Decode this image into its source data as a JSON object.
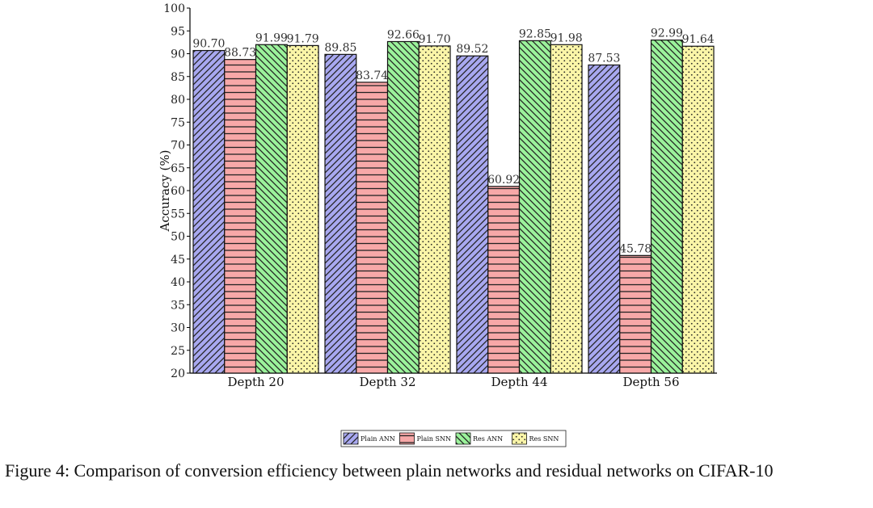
{
  "caption": "Figure 4: Comparison of conversion efficiency between plain networks and residual networks on CIFAR-10",
  "chart_data": {
    "type": "bar",
    "categories": [
      "Depth 20",
      "Depth 32",
      "Depth 44",
      "Depth 56"
    ],
    "series": [
      {
        "name": "Plain ANN",
        "values": [
          90.7,
          89.85,
          89.52,
          87.53
        ],
        "labels": [
          "90.70",
          "89.85",
          "89.52",
          "87.53"
        ],
        "color": "#a8a8f0",
        "hatch": "diag-up"
      },
      {
        "name": "Plain SNN",
        "values": [
          88.73,
          83.74,
          60.92,
          45.78
        ],
        "labels": [
          "88.73",
          "83.74",
          "60.92",
          "45.78"
        ],
        "color": "#f7a8a8",
        "hatch": "horizontal"
      },
      {
        "name": "Res ANN",
        "values": [
          91.99,
          92.66,
          92.85,
          92.99
        ],
        "labels": [
          "91.99",
          "92.66",
          "92.85",
          "92.99"
        ],
        "color": "#9bf29b",
        "hatch": "diag-down"
      },
      {
        "name": "Res SNN",
        "values": [
          91.79,
          91.7,
          91.98,
          91.64
        ],
        "labels": [
          "91.79",
          "91.70",
          "91.98",
          "91.64"
        ],
        "color": "#faf5a8",
        "hatch": "dots"
      }
    ],
    "ylabel": "Accuracy (%)",
    "xlabel": "",
    "ylim": [
      20,
      100
    ],
    "yticks": [
      "20",
      "25",
      "30",
      "35",
      "40",
      "45",
      "50",
      "55",
      "60",
      "65",
      "70",
      "75",
      "80",
      "85",
      "90",
      "95",
      "100"
    ],
    "grid": false,
    "legend_position": "bottom-center"
  }
}
